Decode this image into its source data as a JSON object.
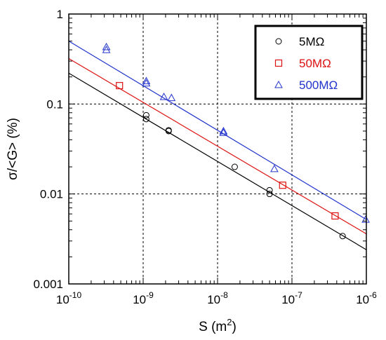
{
  "chart_data": {
    "type": "scatter",
    "xscale": "log",
    "yscale": "log",
    "xlabel": "S (m",
    "xlabel_sup": "2",
    "xlabel_end": ")",
    "ylabel": "σ/<G> (%)",
    "xlim": [
      1e-10,
      1e-06
    ],
    "ylim": [
      0.001,
      1
    ],
    "grid": true,
    "legend_position": "top-right",
    "x_ticks": [
      {
        "value": 1e-10,
        "base": "10",
        "exp": "-10"
      },
      {
        "value": 1e-09,
        "base": "10",
        "exp": "-9"
      },
      {
        "value": 1e-08,
        "base": "10",
        "exp": "-8"
      },
      {
        "value": 1e-07,
        "base": "10",
        "exp": "-7"
      },
      {
        "value": 1e-06,
        "base": "10",
        "exp": "-6"
      }
    ],
    "y_ticks": [
      {
        "value": 1,
        "label": "1"
      },
      {
        "value": 0.1,
        "label": "0.1"
      },
      {
        "value": 0.01,
        "label": "0.01"
      },
      {
        "value": 0.001,
        "label": "0.001"
      }
    ],
    "series": [
      {
        "name": "5MΩ",
        "marker": "circle",
        "color": "#000000",
        "points": [
          {
            "x": 1.1e-09,
            "y": 0.075
          },
          {
            "x": 1.1e-09,
            "y": 0.068
          },
          {
            "x": 2.2e-09,
            "y": 0.051
          },
          {
            "x": 2.2e-09,
            "y": 0.05
          },
          {
            "x": 1.7e-08,
            "y": 0.02
          },
          {
            "x": 5e-08,
            "y": 0.011
          },
          {
            "x": 5e-08,
            "y": 0.01
          },
          {
            "x": 4.8e-07,
            "y": 0.0034
          }
        ],
        "fit": [
          {
            "x": 1e-10,
            "y": 0.22
          },
          {
            "x": 1e-06,
            "y": 0.0024
          }
        ]
      },
      {
        "name": "50MΩ",
        "marker": "square",
        "color": "#dd1111",
        "points": [
          {
            "x": 4.8e-10,
            "y": 0.16
          },
          {
            "x": 7.5e-08,
            "y": 0.0125
          },
          {
            "x": 3.8e-07,
            "y": 0.0057
          }
        ],
        "fit": [
          {
            "x": 1e-10,
            "y": 0.32
          },
          {
            "x": 1e-06,
            "y": 0.0036
          }
        ]
      },
      {
        "name": "500MΩ",
        "marker": "triangle",
        "color": "#2233cc",
        "points": [
          {
            "x": 3.2e-10,
            "y": 0.43
          },
          {
            "x": 3.2e-10,
            "y": 0.4
          },
          {
            "x": 1.1e-09,
            "y": 0.18
          },
          {
            "x": 1.1e-09,
            "y": 0.17
          },
          {
            "x": 1.9e-09,
            "y": 0.12
          },
          {
            "x": 2.4e-09,
            "y": 0.117
          },
          {
            "x": 1.2e-08,
            "y": 0.05
          },
          {
            "x": 1.2e-08,
            "y": 0.048
          },
          {
            "x": 5.8e-08,
            "y": 0.019
          },
          {
            "x": 9.8e-07,
            "y": 0.0052
          }
        ],
        "fit": [
          {
            "x": 1e-10,
            "y": 0.5
          },
          {
            "x": 1e-06,
            "y": 0.0052
          }
        ]
      }
    ]
  }
}
